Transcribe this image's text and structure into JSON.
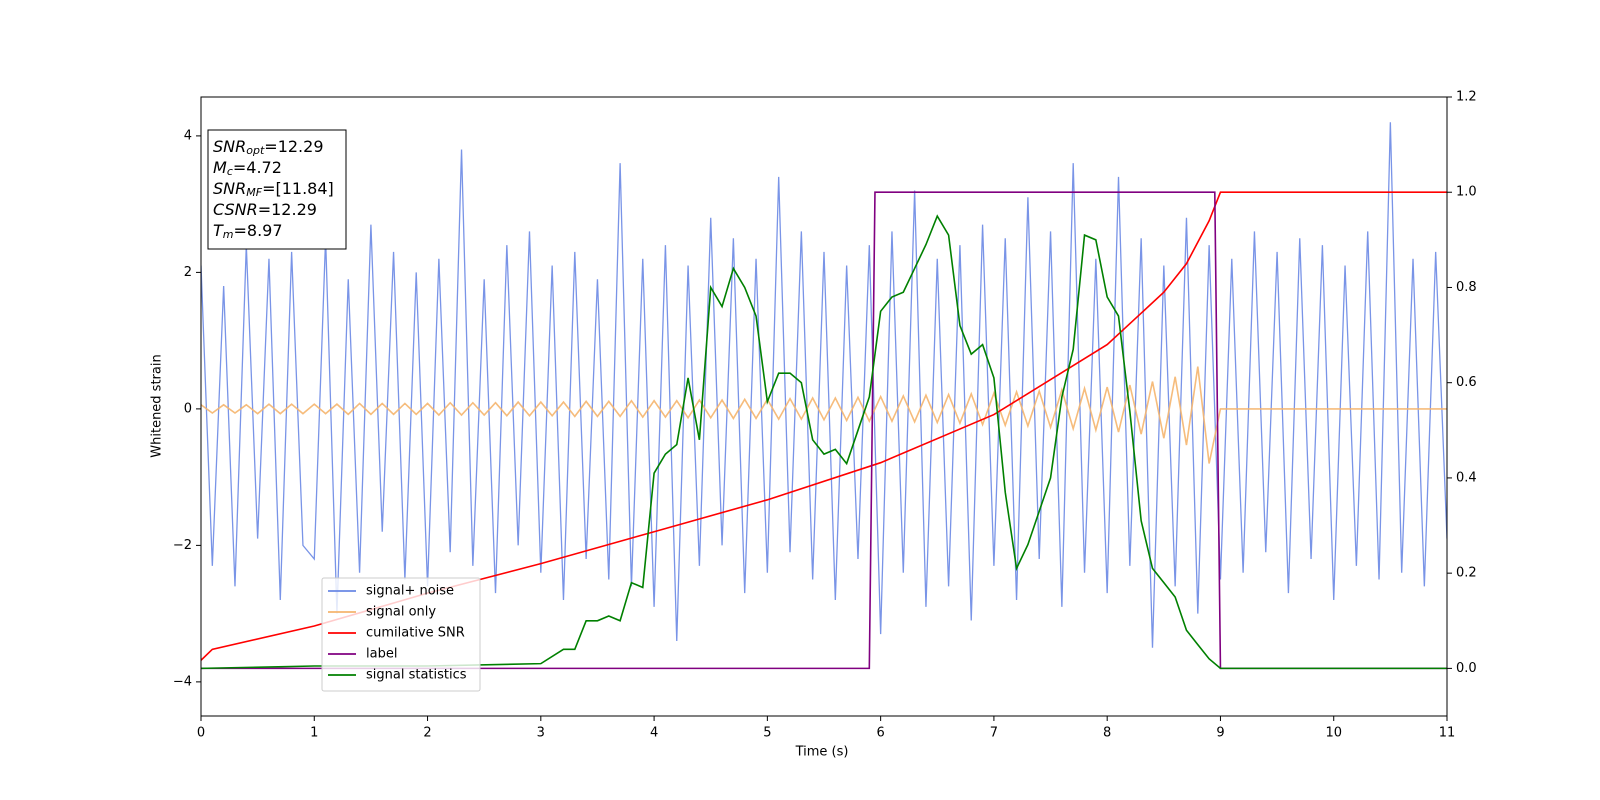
{
  "chart_data": {
    "type": "line",
    "xlabel": "Time (s)",
    "ylabel": "Whitened strain",
    "xlim": [
      0,
      11
    ],
    "xticks": [
      0,
      1,
      2,
      3,
      4,
      5,
      6,
      7,
      8,
      9,
      10,
      11
    ],
    "ylim": [
      -4.5,
      4.57
    ],
    "yticks": [
      {
        "value": -4,
        "label": "−4"
      },
      {
        "value": -2,
        "label": "−2"
      },
      0,
      2,
      4
    ],
    "y2lim": [
      -0.1,
      1.2
    ],
    "y2ticks": [
      {
        "value": 0,
        "label": "0.0"
      },
      0.2,
      0.4,
      0.6,
      0.8,
      {
        "value": 1,
        "label": "1.0"
      },
      1.2
    ],
    "legend": "lower left",
    "annotation": [
      {
        "base": "SNR",
        "sub": "opt",
        "text": "=12.29"
      },
      {
        "base": "M",
        "sub": "c",
        "text": "=4.72"
      },
      {
        "base": "SNR",
        "sub": "MF",
        "text": "=[11.84]"
      },
      {
        "base": "CSNR",
        "text": "=12.29"
      },
      {
        "base": "T",
        "sub": "m",
        "text": "=8.97"
      }
    ],
    "series": [
      {
        "name": "signal+ noise",
        "color": "#6a88e4",
        "x": [
          0,
          0.1,
          0.2,
          0.3,
          0.4,
          0.5,
          0.6,
          0.7,
          0.8,
          0.9,
          1,
          1.1,
          1.2,
          1.3,
          1.4,
          1.5,
          1.6,
          1.7,
          1.8,
          1.9,
          2,
          2.1,
          2.2,
          2.3,
          2.4,
          2.5,
          2.6,
          2.7,
          2.8,
          2.9,
          3,
          3.1,
          3.2,
          3.3,
          3.4,
          3.5,
          3.6,
          3.7,
          3.8,
          3.9,
          4,
          4.1,
          4.2,
          4.3,
          4.4,
          4.5,
          4.6,
          4.7,
          4.8,
          4.9,
          5,
          5.1,
          5.2,
          5.3,
          5.4,
          5.5,
          5.6,
          5.7,
          5.8,
          5.9,
          6,
          6.1,
          6.2,
          6.3,
          6.4,
          6.5,
          6.6,
          6.7,
          6.8,
          6.9,
          7,
          7.1,
          7.2,
          7.3,
          7.4,
          7.5,
          7.6,
          7.7,
          7.8,
          7.9,
          8,
          8.1,
          8.2,
          8.3,
          8.4,
          8.5,
          8.6,
          8.7,
          8.8,
          8.9,
          9,
          9.1,
          9.2,
          9.3,
          9.4,
          9.5,
          9.6,
          9.7,
          9.8,
          9.9,
          10,
          10.1,
          10.2,
          10.3,
          10.4,
          10.5,
          10.6,
          10.7,
          10.8,
          10.9,
          11
        ],
        "values": [
          2.1,
          -2.3,
          1.8,
          -2.6,
          2.4,
          -1.9,
          2.2,
          -2.8,
          2.3,
          -2.0,
          -2.2,
          2.5,
          -3.0,
          1.9,
          -2.4,
          2.7,
          -1.8,
          2.3,
          -2.5,
          2.0,
          -2.6,
          2.2,
          -2.1,
          3.8,
          -2.3,
          1.9,
          -2.7,
          2.4,
          -2.0,
          2.6,
          -2.4,
          2.1,
          -2.8,
          2.3,
          -2.2,
          1.9,
          -2.5,
          3.6,
          -2.6,
          2.2,
          -2.9,
          2.4,
          -3.4,
          2.1,
          -2.3,
          2.8,
          -2.0,
          2.5,
          -2.7,
          2.2,
          -2.4,
          3.4,
          -2.1,
          2.6,
          -2.5,
          2.3,
          -2.8,
          2.1,
          -2.2,
          2.4,
          -3.3,
          2.6,
          -2.4,
          3.2,
          -2.9,
          2.2,
          -2.6,
          2.4,
          -3.1,
          2.7,
          -2.3,
          2.5,
          -2.8,
          3.1,
          -2.2,
          2.6,
          -2.9,
          3.6,
          -2.4,
          2.2,
          -2.7,
          3.4,
          -2.3,
          2.5,
          -3.5,
          2.1,
          -2.6,
          2.8,
          -3.0,
          2.4,
          -2.5,
          2.2,
          -2.4,
          2.6,
          -2.1,
          2.3,
          -2.7,
          2.5,
          -2.2,
          2.4,
          -2.8,
          2.1,
          -2.3,
          2.6,
          -2.5,
          4.2,
          -2.4,
          2.2,
          -2.6,
          2.3,
          -1.9
        ]
      },
      {
        "name": "signal only",
        "color": "#f5b56e",
        "x": [
          0,
          0.1,
          0.2,
          0.3,
          0.4,
          0.5,
          0.6,
          0.7,
          0.8,
          0.9,
          1,
          1.1,
          1.2,
          1.3,
          1.4,
          1.5,
          1.6,
          1.7,
          1.8,
          1.9,
          2,
          2.1,
          2.2,
          2.3,
          2.4,
          2.5,
          2.6,
          2.7,
          2.8,
          2.9,
          3,
          3.1,
          3.2,
          3.3,
          3.4,
          3.5,
          3.6,
          3.7,
          3.8,
          3.9,
          4,
          4.1,
          4.2,
          4.3,
          4.4,
          4.5,
          4.6,
          4.7,
          4.8,
          4.9,
          5,
          5.1,
          5.2,
          5.3,
          5.4,
          5.5,
          5.6,
          5.7,
          5.8,
          5.9,
          6,
          6.1,
          6.2,
          6.3,
          6.4,
          6.5,
          6.6,
          6.7,
          6.8,
          6.9,
          7,
          7.1,
          7.2,
          7.3,
          7.4,
          7.5,
          7.6,
          7.7,
          7.8,
          7.9,
          8,
          8.1,
          8.2,
          8.3,
          8.4,
          8.5,
          8.6,
          8.7,
          8.8,
          8.9,
          9,
          9.1,
          9.2,
          9.3,
          9.4,
          9.5,
          9.6,
          9.7,
          9.8,
          9.9,
          10,
          10.1,
          10.2,
          10.3,
          10.4,
          10.5,
          10.6,
          10.7,
          10.8,
          10.9,
          11
        ],
        "values": [
          0.06,
          -0.06,
          0.06,
          -0.06,
          0.06,
          -0.07,
          0.07,
          -0.07,
          0.07,
          -0.07,
          0.07,
          -0.07,
          0.07,
          -0.08,
          0.08,
          -0.08,
          0.08,
          -0.08,
          0.08,
          -0.08,
          0.08,
          -0.09,
          0.09,
          -0.09,
          0.09,
          -0.09,
          0.09,
          -0.1,
          0.1,
          -0.1,
          0.1,
          -0.1,
          0.1,
          -0.11,
          0.11,
          -0.11,
          0.11,
          -0.11,
          0.12,
          -0.12,
          0.12,
          -0.12,
          0.12,
          -0.13,
          0.13,
          -0.13,
          0.13,
          -0.14,
          0.14,
          -0.14,
          0.14,
          -0.15,
          0.15,
          -0.15,
          0.16,
          -0.16,
          0.16,
          -0.17,
          0.17,
          -0.18,
          0.18,
          -0.18,
          0.19,
          -0.19,
          0.2,
          -0.2,
          0.21,
          -0.21,
          0.22,
          -0.23,
          0.23,
          -0.24,
          0.25,
          -0.25,
          0.26,
          -0.27,
          0.28,
          -0.29,
          0.3,
          -0.31,
          0.32,
          -0.34,
          0.35,
          -0.37,
          0.4,
          -0.43,
          0.47,
          -0.53,
          0.62,
          -0.8,
          0,
          0,
          0,
          0,
          0,
          0,
          0,
          0,
          0,
          0,
          0,
          0,
          0,
          0,
          0,
          0,
          0,
          0,
          0,
          0,
          0
        ]
      },
      {
        "name": "cumilative SNR",
        "color": "#ff0000",
        "axis": "y2",
        "x": [
          0,
          0.1,
          1,
          2,
          3,
          4,
          5,
          6,
          7,
          8,
          8.5,
          8.7,
          8.9,
          9,
          11
        ],
        "values": [
          0.017,
          0.04,
          0.089,
          0.158,
          0.22,
          0.287,
          0.354,
          0.432,
          0.533,
          0.68,
          0.79,
          0.85,
          0.94,
          1.0,
          1.0
        ]
      },
      {
        "name": "label",
        "color": "#800080",
        "axis": "y2",
        "x": [
          0,
          5.9,
          5.95,
          8.95,
          9.0,
          11
        ],
        "values": [
          0,
          0,
          1,
          1,
          0,
          0
        ]
      },
      {
        "name": "signal statistics",
        "color": "#008000",
        "axis": "y2",
        "x": [
          0,
          1,
          2,
          3,
          3.2,
          3.3,
          3.4,
          3.5,
          3.6,
          3.7,
          3.8,
          3.9,
          4,
          4.1,
          4.2,
          4.3,
          4.4,
          4.5,
          4.6,
          4.7,
          4.8,
          4.9,
          5,
          5.1,
          5.2,
          5.3,
          5.4,
          5.5,
          5.6,
          5.7,
          5.8,
          5.9,
          6,
          6.1,
          6.2,
          6.3,
          6.4,
          6.5,
          6.6,
          6.7,
          6.8,
          6.9,
          7,
          7.1,
          7.2,
          7.3,
          7.4,
          7.5,
          7.6,
          7.7,
          7.8,
          7.9,
          8,
          8.1,
          8.2,
          8.3,
          8.4,
          8.5,
          8.6,
          8.7,
          8.8,
          8.9,
          9,
          11
        ],
        "values": [
          0,
          0.005,
          0.005,
          0.01,
          0.04,
          0.04,
          0.1,
          0.1,
          0.11,
          0.1,
          0.18,
          0.17,
          0.41,
          0.45,
          0.47,
          0.61,
          0.48,
          0.8,
          0.76,
          0.84,
          0.8,
          0.74,
          0.56,
          0.62,
          0.62,
          0.6,
          0.48,
          0.45,
          0.46,
          0.43,
          0.5,
          0.57,
          0.75,
          0.78,
          0.79,
          0.84,
          0.89,
          0.95,
          0.91,
          0.72,
          0.66,
          0.68,
          0.61,
          0.37,
          0.21,
          0.26,
          0.33,
          0.4,
          0.57,
          0.67,
          0.91,
          0.9,
          0.78,
          0.74,
          0.54,
          0.31,
          0.21,
          0.18,
          0.15,
          0.08,
          0.05,
          0.02,
          0.0,
          0
        ]
      }
    ]
  }
}
